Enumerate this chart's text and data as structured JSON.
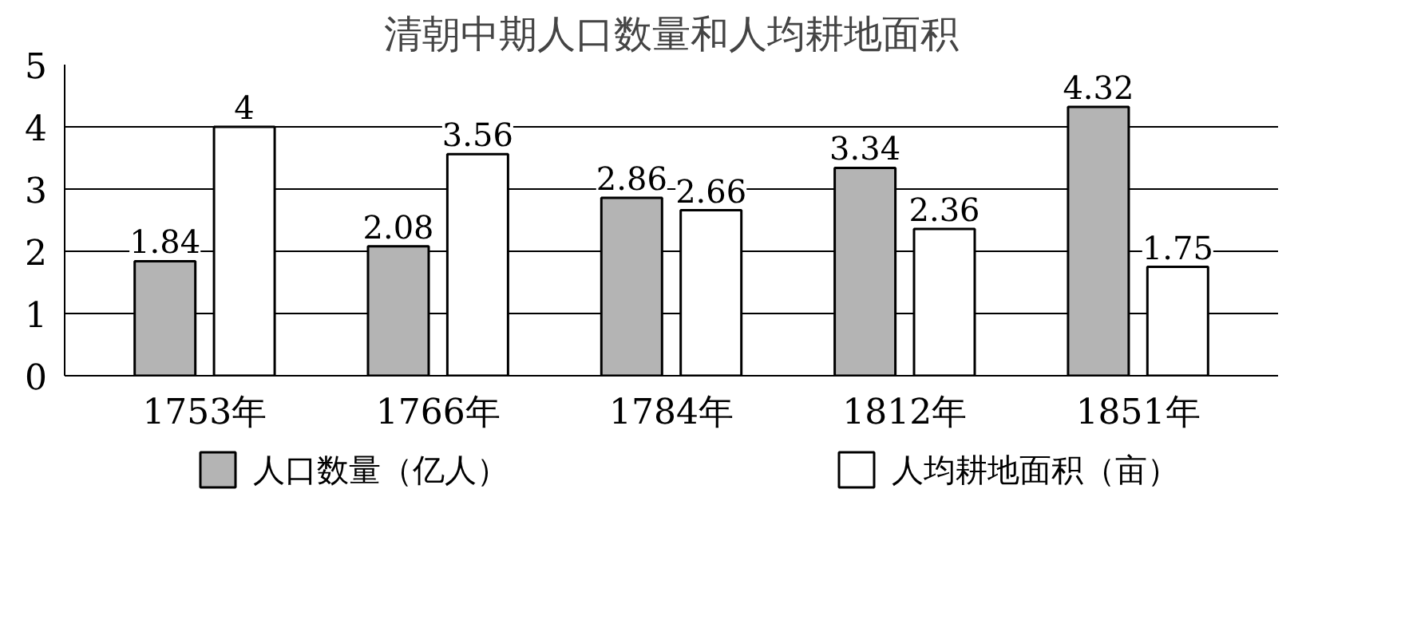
{
  "chart_data": {
    "type": "bar",
    "title": "清朝中期人口数量和人均耕地面积",
    "categories": [
      "1753年",
      "1766年",
      "1784年",
      "1812年",
      "1851年"
    ],
    "series": [
      {
        "name": "人口数量（亿人）",
        "color": "#b4b4b4",
        "values": [
          1.84,
          2.08,
          2.86,
          3.34,
          4.32
        ]
      },
      {
        "name": "人均耕地面积（亩）",
        "color": "#ffffff",
        "values": [
          4,
          3.56,
          2.66,
          2.36,
          1.75
        ]
      }
    ],
    "ylim": [
      0,
      5
    ],
    "yticks": [
      0,
      1,
      2,
      3,
      4,
      5
    ],
    "grid": "y",
    "legend": "bottom",
    "data_labels": true
  }
}
